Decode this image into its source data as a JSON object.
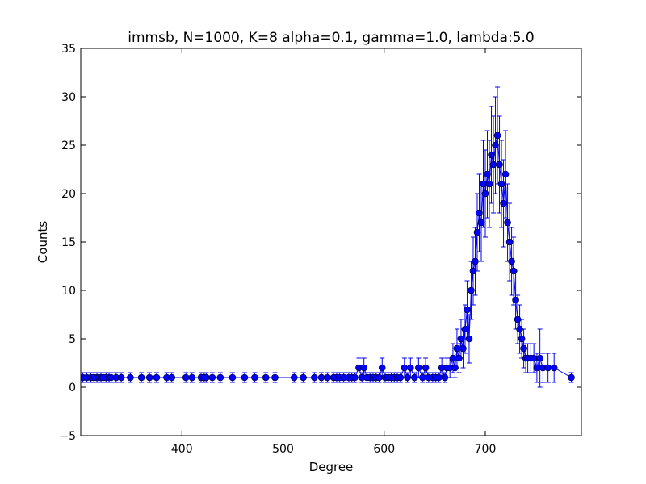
{
  "chart_data": {
    "type": "scatter",
    "title": "immsb, N=1000, K=8 alpha=0.1, gamma=1.0, lambda:5.0",
    "xlabel": "Degree",
    "ylabel": "Counts",
    "xlim": [
      300,
      795
    ],
    "ylim": [
      -5,
      35
    ],
    "xticks": [
      400,
      500,
      600,
      700
    ],
    "yticks": [
      -5,
      0,
      5,
      10,
      15,
      20,
      25,
      30,
      35
    ],
    "grid": false,
    "legend": "none",
    "marker": "circle",
    "color": "#0000ff",
    "series": [
      {
        "x": [
          302,
          306,
          310,
          313,
          316,
          318,
          320,
          322,
          325,
          328,
          330,
          335,
          340,
          349,
          360,
          368,
          375,
          385,
          390,
          404,
          410,
          419,
          422,
          424,
          430,
          438,
          450,
          462,
          472,
          483,
          492,
          511,
          520,
          531,
          538,
          544,
          550,
          553,
          556,
          560,
          565,
          568,
          571,
          575,
          578,
          580,
          583,
          586,
          589,
          592,
          595,
          598,
          601,
          604,
          607,
          610,
          613,
          616,
          620,
          623,
          626,
          630,
          634,
          638,
          641,
          644,
          648,
          651,
          654,
          657,
          660,
          662,
          665,
          668,
          670,
          672,
          674,
          676,
          678,
          680,
          682,
          684,
          686,
          688,
          690,
          692,
          694,
          696,
          698,
          700,
          702,
          704,
          706,
          708,
          710,
          712,
          714,
          716,
          718,
          720,
          722,
          724,
          726,
          728,
          730,
          732,
          734,
          736,
          738,
          740,
          742,
          745,
          748,
          751,
          754,
          757,
          762,
          768,
          785
        ],
        "y": [
          1,
          1,
          1,
          1,
          1,
          1,
          1,
          1,
          1,
          1,
          1,
          1,
          1,
          1,
          1,
          1,
          1,
          1,
          1,
          1,
          1,
          1,
          1,
          1,
          1,
          1,
          1,
          1,
          1,
          1,
          1,
          1,
          1,
          1,
          1,
          1,
          1,
          1,
          1,
          1,
          1,
          1,
          1,
          2,
          1,
          2,
          1,
          1,
          1,
          1,
          1,
          2,
          1,
          1,
          1,
          1,
          1,
          1,
          2,
          1,
          2,
          1,
          2,
          1,
          2,
          1,
          1,
          1,
          1,
          2,
          1,
          2,
          2,
          3,
          2,
          4,
          3,
          5,
          4,
          6,
          8,
          5,
          10,
          12,
          13,
          16,
          18,
          17,
          21,
          20,
          22,
          21,
          24,
          23,
          25,
          26,
          23,
          21,
          19,
          22,
          17,
          15,
          13,
          12,
          9,
          7,
          6,
          5,
          4,
          3,
          3,
          3,
          3,
          2,
          3,
          2,
          2,
          2,
          1
        ],
        "error": [
          0.5,
          0.5,
          0.5,
          0.5,
          0.5,
          0.5,
          0.5,
          0.5,
          0.5,
          0.5,
          0.5,
          0.5,
          0.5,
          0.5,
          0.5,
          0.5,
          0.5,
          0.5,
          0.5,
          0.5,
          0.5,
          0.5,
          0.5,
          0.5,
          0.5,
          0.5,
          0.5,
          0.5,
          0.5,
          0.5,
          0.5,
          0.5,
          0.5,
          0.5,
          0.5,
          0.5,
          0.5,
          0.5,
          0.5,
          0.5,
          0.5,
          0.5,
          0.5,
          1,
          0.5,
          1,
          0.5,
          0.5,
          0.5,
          0.5,
          0.5,
          1,
          0.5,
          0.5,
          0.5,
          0.5,
          0.5,
          0.5,
          1,
          0.5,
          1,
          0.5,
          1,
          0.5,
          1,
          0.5,
          0.5,
          0.5,
          0.5,
          1,
          0.5,
          1,
          1,
          1.5,
          1,
          2,
          1.5,
          2,
          2,
          2.5,
          3,
          2.5,
          3,
          3.5,
          3.5,
          4,
          4,
          4,
          4.5,
          4.5,
          4.5,
          4.5,
          5,
          5,
          5,
          5,
          5,
          4.5,
          4.5,
          4.5,
          4,
          4,
          3.5,
          3.5,
          3,
          2.5,
          2.5,
          2,
          2,
          1.5,
          1.5,
          1.5,
          1.5,
          1.5,
          3,
          1.5,
          1.5,
          1.5,
          0.5
        ]
      }
    ]
  }
}
